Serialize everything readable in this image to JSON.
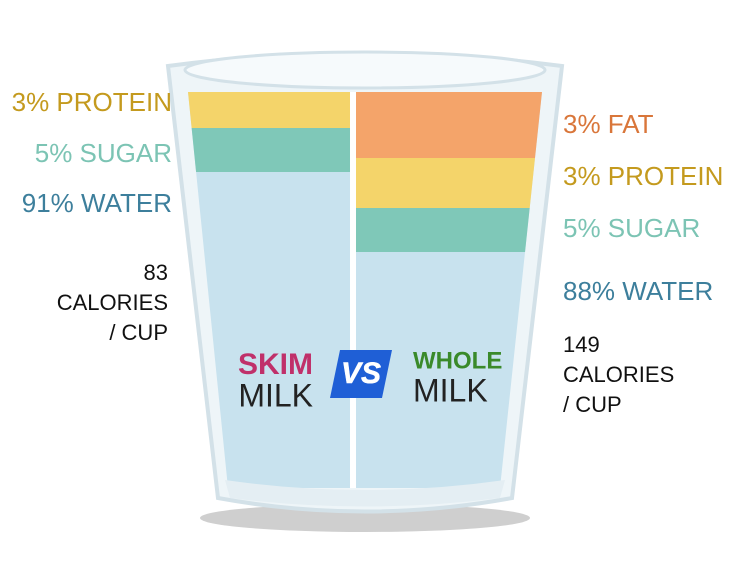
{
  "skim": {
    "title": [
      "SKIM",
      "MILK"
    ],
    "labels": [
      "3% PROTEIN",
      "5% SUGAR",
      "91% WATER"
    ],
    "calories": [
      "83",
      "CALORIES",
      "/ CUP"
    ]
  },
  "vs": "VS",
  "whole": {
    "title": [
      "WHOLE",
      "MILK"
    ],
    "labels": [
      "3% FAT",
      "3% PROTEIN",
      "5% SUGAR",
      "88% WATER"
    ],
    "calories": [
      "149",
      "CALORIES",
      "/ CUP"
    ]
  }
}
